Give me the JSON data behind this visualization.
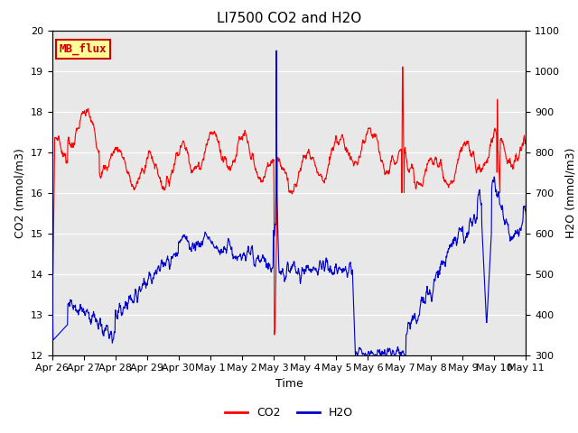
{
  "title": "LI7500 CO2 and H2O",
  "xlabel": "Time",
  "ylabel_left": "CO2 (mmol/m3)",
  "ylabel_right": "H2O (mmol/m3)",
  "co2_ylim": [
    12.0,
    20.0
  ],
  "h2o_ylim": [
    300,
    1100
  ],
  "co2_color": "#FF0000",
  "h2o_color": "#0000CC",
  "background_color": "#DCDCDC",
  "plot_bg_color": "#E8E8E8",
  "annotation_text": "MB_flux",
  "annotation_bg": "#FFFF99",
  "annotation_border": "#CC0000",
  "x_tick_labels": [
    "Apr 26",
    "Apr 27",
    "Apr 28",
    "Apr 29",
    "Apr 30",
    "May 1",
    "May 2",
    "May 3",
    "May 4",
    "May 5",
    "May 6",
    "May 7",
    "May 8",
    "May 9",
    "May 10",
    "May 11"
  ],
  "title_fontsize": 11,
  "axis_fontsize": 9,
  "tick_fontsize": 8
}
